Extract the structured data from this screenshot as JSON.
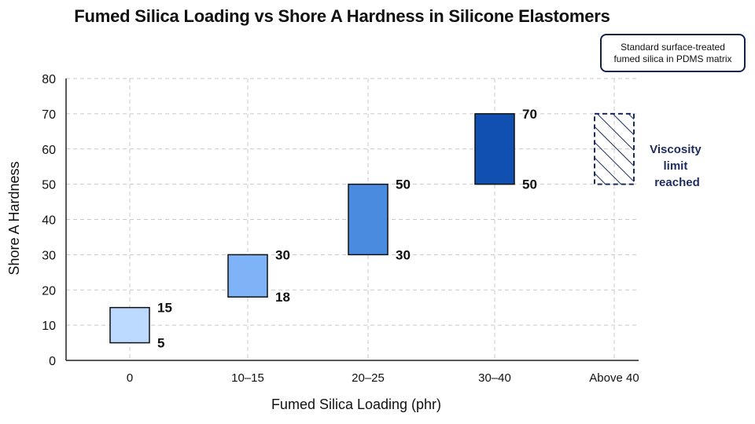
{
  "chart_data": {
    "type": "bar",
    "subtype": "floating-range",
    "title": "Fumed Silica Loading vs Shore A Hardness in Silicone Elastomers",
    "xlabel": "Fumed Silica Loading (phr)",
    "ylabel": "Shore A Hardness",
    "ylim": [
      0,
      80
    ],
    "yticks": [
      0,
      10,
      20,
      30,
      40,
      50,
      60,
      70,
      80
    ],
    "categories": [
      "0",
      "10–15",
      "20–25",
      "30–40",
      "Above 40"
    ],
    "ranges": [
      {
        "category": "0",
        "low": 5,
        "high": 15,
        "low_label": "5",
        "high_label": "15",
        "color": "#bcdaff"
      },
      {
        "category": "10–15",
        "low": 18,
        "high": 30,
        "low_label": "18",
        "high_label": "30",
        "color": "#7fb3f7"
      },
      {
        "category": "20–25",
        "low": 30,
        "high": 50,
        "low_label": "30",
        "high_label": "50",
        "color": "#4a8be0"
      },
      {
        "category": "30–40",
        "low": 50,
        "high": 70,
        "low_label": "50",
        "high_label": "70",
        "color": "#114fb0"
      },
      {
        "category": "Above 40",
        "low": 50,
        "high": 70,
        "style": "hatched-dashed",
        "color": "#1d2c5e"
      }
    ],
    "annotation": {
      "lines": [
        "Viscosity",
        "limit",
        "reached"
      ]
    },
    "note": {
      "lines": [
        "Standard surface-treated",
        "fumed silica in PDMS matrix"
      ]
    },
    "grid": true,
    "legend": "none"
  }
}
